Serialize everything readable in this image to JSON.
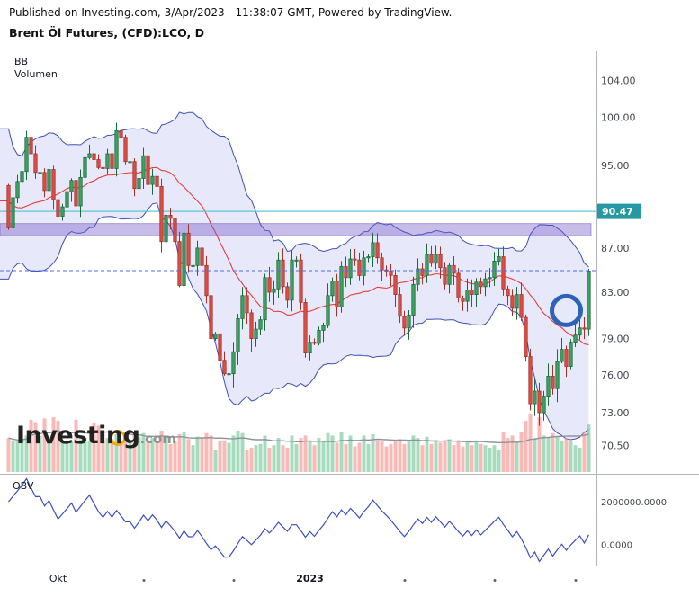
{
  "header": {
    "published_line": "Published on Investing.com, 3/Apr/2023 - 11:38:07 GMT, Powered by TradingView.",
    "instrument_title": "Brent Öl Futures, (CFD):LCO, D"
  },
  "watermark": {
    "name": "Investing",
    "suffix": ".com"
  },
  "main_panel": {
    "indicator_labels": [
      "BB",
      "Volumen"
    ],
    "price_ticks": [
      {
        "label": "104.00",
        "value": 104.0
      },
      {
        "label": "100.00",
        "value": 100.0
      },
      {
        "label": "95.00",
        "value": 95.0
      },
      {
        "label": "87.00",
        "value": 87.0
      },
      {
        "label": "83.00",
        "value": 83.0
      },
      {
        "label": "79.00",
        "value": 79.0
      },
      {
        "label": "76.00",
        "value": 76.0
      },
      {
        "label": "73.00",
        "value": 73.0
      },
      {
        "label": "70.50",
        "value": 70.5
      }
    ],
    "price_tag": {
      "label": "90.47",
      "value": 90.47
    }
  },
  "obv_panel": {
    "label": "OBV",
    "axis_ticks": [
      {
        "label": "2000000.0000",
        "value": 2000000
      },
      {
        "label": "0.0000",
        "value": 0
      }
    ]
  },
  "colors": {
    "up_body": "#3da35f",
    "up_border": "#1a6b3c",
    "down_body": "#dd4f45",
    "down_border": "#a4312a",
    "bb_line": "#3f51b5",
    "bb_fill": "rgba(104,114,224,0.16)",
    "sma_line": "#e5403d",
    "vol_up": "rgba(118,201,153,0.65)",
    "vol_down": "rgba(244,142,139,0.62)",
    "vol_ma": "#8f939b",
    "alert_line": "#5fc6d4",
    "price_tag_bg": "#2598a4",
    "price_tag_text": "#ffffff",
    "zone_fill": "rgba(110,82,196,0.38)",
    "zone_border": "rgba(88,58,170,0.55)",
    "dashed_line": "#4c6fe0",
    "circle": "#2a63b8",
    "obv_line": "#3c4fbe",
    "axis_text": "#44474f",
    "divider": "#b2b5be"
  },
  "chart_data": {
    "type": "candlestick",
    "title": "Brent Öl Futures, (CFD):LCO, D",
    "interval": "D",
    "scale": "log",
    "price_range": [
      68.4,
      107.3
    ],
    "closes_pre_window": [
      101.0,
      97.2,
      95.1,
      94.0,
      92.8,
      91.2,
      92.3,
      90.6,
      89.0,
      88.1,
      86.5,
      85.2,
      87.3,
      90.2,
      92.5,
      94.1,
      91.0,
      89.7,
      93.0
    ],
    "closes": [
      88.9,
      91.8,
      93.4,
      94.4,
      97.9,
      96.2,
      94.3,
      94.3,
      92.5,
      94.6,
      91.6,
      90.0,
      90.9,
      92.4,
      93.5,
      91.0,
      93.8,
      95.8,
      96.2,
      95.6,
      94.8,
      94.7,
      96.2,
      94.7,
      98.6,
      97.9,
      95.4,
      95.4,
      92.7,
      93.7,
      96.0,
      93.1,
      93.9,
      92.9,
      87.6,
      90.1,
      89.8,
      87.6,
      83.6,
      88.4,
      85.4,
      85.4,
      87.0,
      85.4,
      82.7,
      79.0,
      79.4,
      77.2,
      76.1,
      76.1,
      77.9,
      80.7,
      82.7,
      81.2,
      79.0,
      79.8,
      80.6,
      84.3,
      83.0,
      83.3,
      85.9,
      83.5,
      82.3,
      85.9,
      85.9,
      82.1,
      77.8,
      78.7,
      78.6,
      79.7,
      80.1,
      82.7,
      84.0,
      81.7,
      85.3,
      84.3,
      86.0,
      85.9,
      84.5,
      86.1,
      86.2,
      87.5,
      86.1,
      85.0,
      84.9,
      84.5,
      82.8,
      80.9,
      79.9,
      81.0,
      83.7,
      85.1,
      84.5,
      86.4,
      85.6,
      86.4,
      85.2,
      83.7,
      85.4,
      84.7,
      82.5,
      82.2,
      83.2,
      82.8,
      83.9,
      83.5,
      84.2,
      84.3,
      85.8,
      86.2,
      83.3,
      82.7,
      81.6,
      82.8,
      80.8,
      77.5,
      73.7,
      74.7,
      73.0,
      74.3,
      75.9,
      74.9,
      77.1,
      78.1,
      76.7,
      78.7,
      79.3,
      79.9,
      79.8,
      84.9
    ],
    "volumes_k": [
      280,
      260,
      250,
      270,
      300,
      430,
      410,
      300,
      440,
      260,
      450,
      420,
      240,
      250,
      260,
      430,
      270,
      280,
      250,
      400,
      380,
      260,
      280,
      270,
      310,
      250,
      280,
      240,
      300,
      290,
      320,
      260,
      280,
      250,
      340,
      300,
      230,
      260,
      310,
      330,
      270,
      220,
      290,
      280,
      320,
      300,
      180,
      260,
      260,
      240,
      300,
      340,
      320,
      180,
      200,
      220,
      230,
      300,
      200,
      220,
      280,
      220,
      200,
      300,
      230,
      280,
      300,
      260,
      220,
      280,
      250,
      320,
      300,
      240,
      330,
      230,
      300,
      210,
      240,
      300,
      230,
      310,
      260,
      250,
      210,
      230,
      260,
      270,
      230,
      250,
      300,
      280,
      220,
      290,
      230,
      260,
      240,
      250,
      270,
      220,
      260,
      210,
      250,
      220,
      260,
      230,
      220,
      200,
      220,
      180,
      330,
      280,
      300,
      240,
      330,
      420,
      480,
      280,
      450,
      300,
      280,
      320,
      290,
      260,
      280,
      250,
      220,
      200,
      330,
      390
    ],
    "indicators": {
      "bollinger_period": 20,
      "bollinger_stddev": 2,
      "volume_ma_period": 20,
      "obv": true,
      "obv_start": 2300000
    },
    "overlays": {
      "alert_line_value": 90.47,
      "resistance_zone": {
        "from": 88.15,
        "to": 89.3
      },
      "last_price_line_value": 84.93,
      "circle_annotation": {
        "index": 124,
        "price": 81.4,
        "radius_px": 16
      }
    },
    "x_ticks": [
      {
        "type": "label",
        "label": "Okt",
        "index": 11
      },
      {
        "type": "dot",
        "index": 30
      },
      {
        "type": "dot",
        "index": 50
      },
      {
        "type": "label",
        "label": "2023",
        "index": 67,
        "bold": true
      },
      {
        "type": "dot",
        "index": 88
      },
      {
        "type": "dot",
        "index": 108
      },
      {
        "type": "dot",
        "index": 126
      }
    ]
  }
}
